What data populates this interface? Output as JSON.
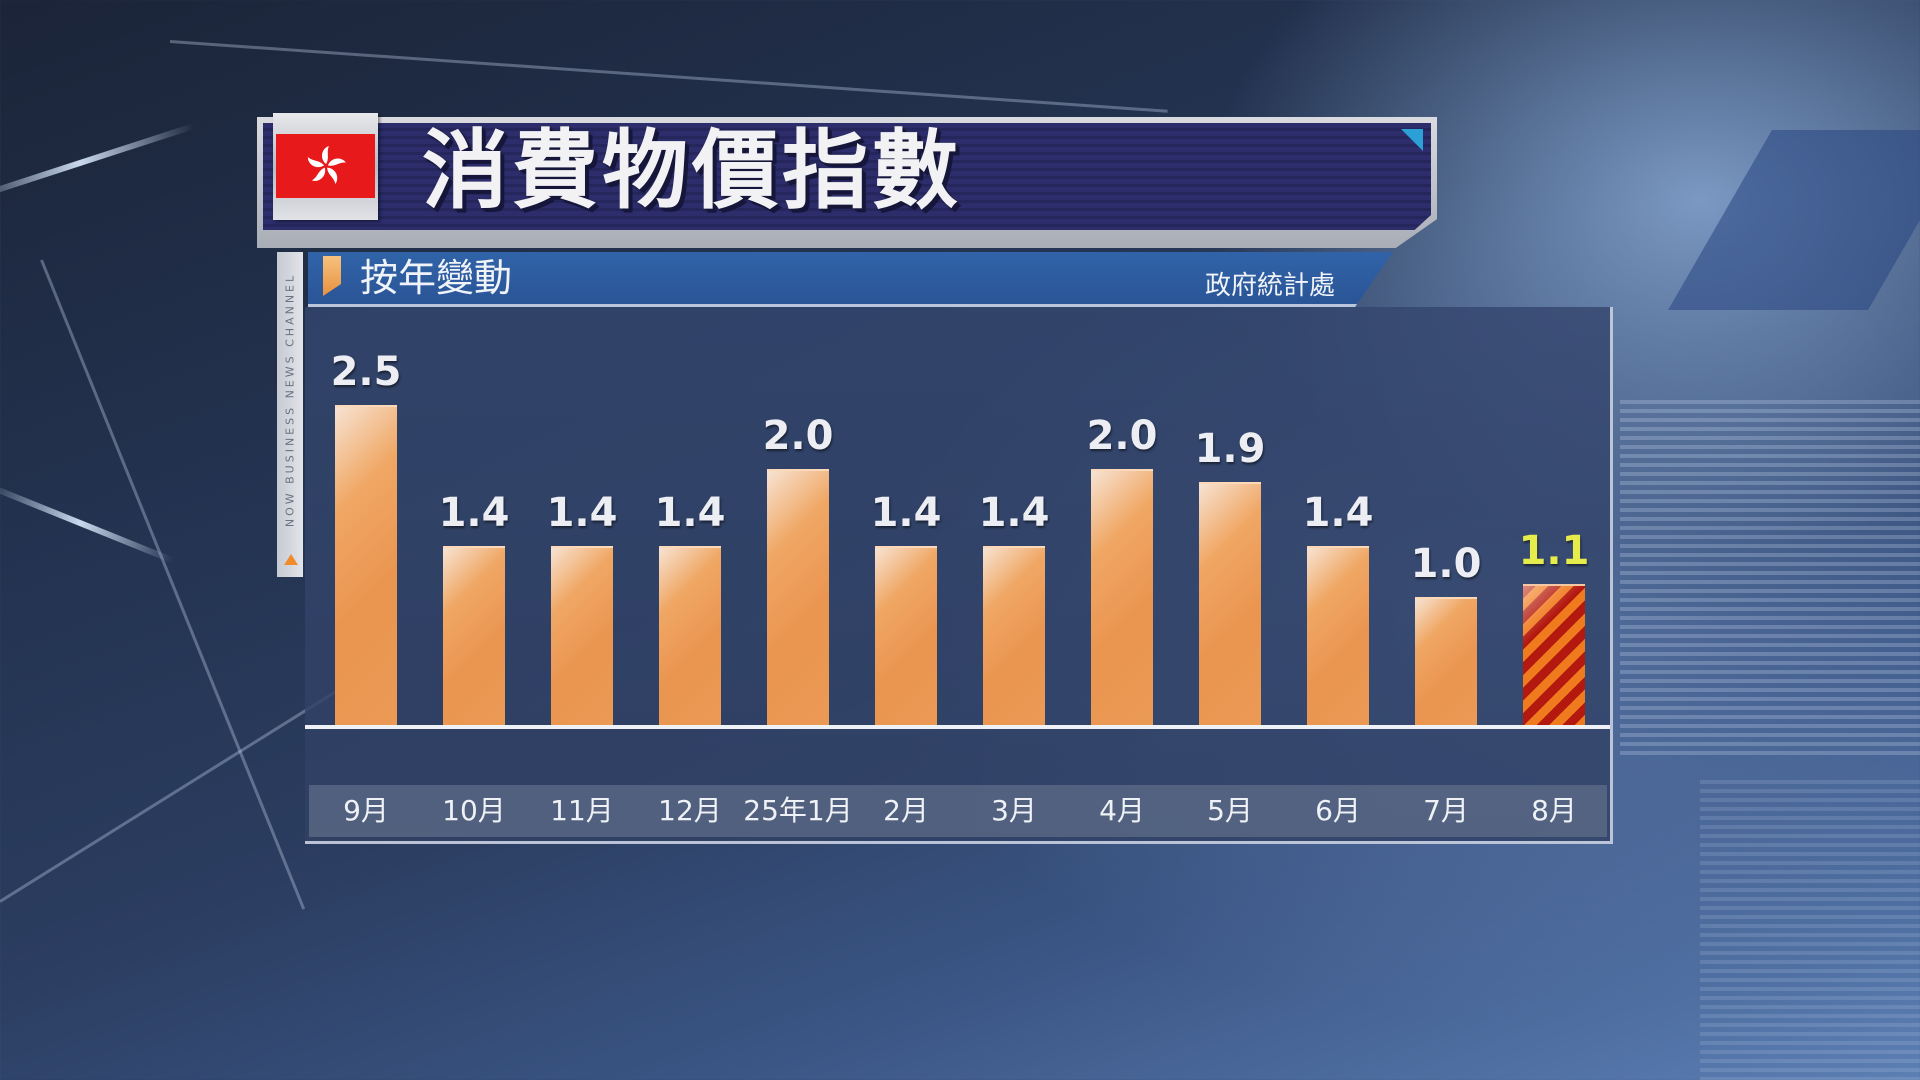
{
  "header": {
    "title": "消費物價指數",
    "flag": "hong-kong-flag"
  },
  "subheader": {
    "label": "按年變動",
    "source": "政府統計處"
  },
  "channel": {
    "label": "NOW BUSINESS NEWS CHANNEL"
  },
  "colors": {
    "bar": "#ec9a55",
    "highlight_stripe_a": "#b3190f",
    "highlight_stripe_b": "#f07a1e",
    "highlight_label": "#e6ec4c",
    "title_bg": "#2c2d6a",
    "subtitle_bg": "#2f5ea2"
  },
  "chart_data": {
    "type": "bar",
    "title": "消費物價指數",
    "subtitle": "按年變動",
    "source": "政府統計處",
    "xlabel": "",
    "ylabel": "",
    "categories": [
      "9月",
      "10月",
      "11月",
      "12月",
      "25年1月",
      "2月",
      "3月",
      "4月",
      "5月",
      "6月",
      "7月",
      "8月"
    ],
    "values": [
      2.5,
      1.4,
      1.4,
      1.4,
      2.0,
      1.4,
      1.4,
      2.0,
      1.9,
      1.4,
      1.0,
      1.1
    ],
    "value_labels": [
      "2.5",
      "1.4",
      "1.4",
      "1.4",
      "2.0",
      "1.4",
      "1.4",
      "2.0",
      "1.9",
      "1.4",
      "1.0",
      "1.1"
    ],
    "highlighted_index": 11,
    "ylim": [
      0,
      2.5
    ],
    "grid": false,
    "legend": null
  }
}
